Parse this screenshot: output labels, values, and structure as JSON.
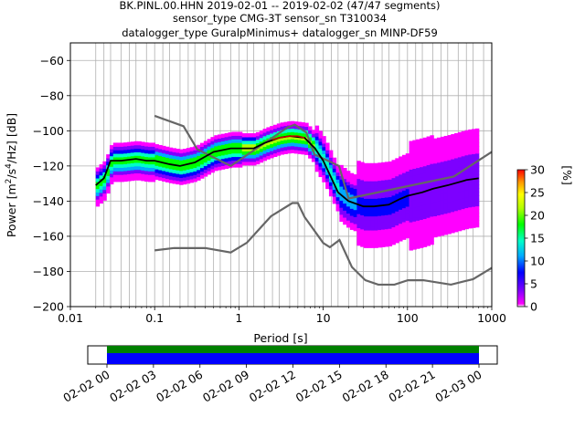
{
  "chart_data": {
    "type": "heatmap",
    "title_lines": [
      "BK.PINL.00.HHN   2019-02-01 -- 2019-02-02  (47/47 segments)",
      "sensor_type CMG-3T sensor_sn T310034",
      "datalogger_type GuralpMinimus+ datalogger_sn MINP-DF59"
    ],
    "xlabel": "Period [s]",
    "ylabel_parts": [
      "Power [m",
      "2",
      "/s",
      "4",
      "/Hz] [dB]"
    ],
    "x_scale": "log",
    "xlim": [
      0.01,
      1000
    ],
    "ylim": [
      -200,
      -50
    ],
    "x_ticks": [
      {
        "value": 0.01,
        "label": "0.01"
      },
      {
        "value": 0.1,
        "label": "0.1"
      },
      {
        "value": 1,
        "label": "1"
      },
      {
        "value": 10,
        "label": "10"
      },
      {
        "value": 100,
        "label": "100"
      },
      {
        "value": 1000,
        "label": "1000"
      }
    ],
    "y_ticks": [
      {
        "value": -60,
        "label": "−60"
      },
      {
        "value": -80,
        "label": "−80"
      },
      {
        "value": -100,
        "label": "−100"
      },
      {
        "value": -120,
        "label": "−120"
      },
      {
        "value": -140,
        "label": "−140"
      },
      {
        "value": -160,
        "label": "−160"
      },
      {
        "value": -180,
        "label": "−180"
      },
      {
        "value": -200,
        "label": "−200"
      }
    ],
    "period_gridlines": [
      0.02,
      0.025,
      0.03,
      0.04,
      0.05,
      0.06,
      0.08,
      0.1,
      0.125,
      0.15,
      0.2,
      0.25,
      0.3,
      0.4,
      0.5,
      0.6,
      0.8,
      1,
      1.25,
      1.5,
      2,
      2.5,
      3,
      4,
      5,
      6,
      8,
      10,
      12.5,
      15,
      20,
      25,
      30,
      40,
      50,
      60,
      80,
      100,
      125,
      150,
      200,
      250,
      300,
      400,
      500,
      600,
      800
    ],
    "grid": true,
    "nlnm": {
      "name": "NLNM",
      "color": "#666666",
      "x": [
        0.1,
        0.17,
        0.4,
        0.8,
        1.24,
        2.4,
        4.3,
        5.0,
        6.0,
        10.0,
        12.0,
        15.6,
        21.9,
        31.6,
        45.0,
        70.0,
        101.0,
        154.0,
        328.0,
        600.0,
        1000.0
      ],
      "y": [
        -168,
        -166.7,
        -166.7,
        -169.2,
        -163.7,
        -148.6,
        -141.1,
        -141.1,
        -149.0,
        -163.8,
        -166.2,
        -162.1,
        -177.5,
        -185.0,
        -187.5,
        -187.5,
        -185.0,
        -185.0,
        -187.5,
        -184.4,
        -178
      ]
    },
    "nhnm": {
      "name": "NHNM",
      "color": "#666666",
      "x": [
        0.1,
        0.22,
        0.32,
        0.8,
        3.8,
        4.6,
        6.3,
        7.9,
        15.4,
        20.0,
        354.8,
        1000.0
      ],
      "y": [
        -91.5,
        -97.4,
        -110.5,
        -120.0,
        -98.0,
        -96.5,
        -101.0,
        -113.5,
        -120.0,
        -138.5,
        -126.0,
        -112.0
      ]
    },
    "mean": {
      "name": "mean",
      "color": "#000000",
      "x": [
        0.02,
        0.025,
        0.03,
        0.04,
        0.06,
        0.08,
        0.1,
        0.15,
        0.2,
        0.3,
        0.5,
        0.8,
        1.0,
        1.5,
        2.0,
        3.0,
        4.0,
        6.0,
        8.0,
        10.0,
        15.0,
        20.0,
        30.0,
        40.0,
        60.0,
        80.0,
        100.0,
        150.0,
        200.0,
        300.0,
        500.0,
        700.0
      ],
      "y": [
        -131,
        -127,
        -117,
        -117,
        -116,
        -117,
        -117,
        -119,
        -120,
        -118,
        -112,
        -110,
        -110,
        -110,
        -107,
        -104,
        -103,
        -104,
        -110,
        -117,
        -135,
        -140,
        -143,
        -143,
        -142,
        -139,
        -137,
        -135,
        -133,
        -131,
        -128,
        -127
      ]
    },
    "mode": {
      "name": "mode",
      "color": "#cc0000",
      "x": [
        2.5,
        3.0,
        4.0,
        5.0,
        6.0
      ],
      "y": [
        -105,
        -104,
        -103,
        -103,
        -104
      ]
    },
    "colorbar": {
      "label": "[%]",
      "min": 0,
      "max": 30,
      "ticks": [
        "0",
        "5",
        "10",
        "15",
        "20",
        "25",
        "30"
      ],
      "colormap": "pqlx"
    },
    "timeline": {
      "labels": [
        "02-02 00",
        "02-02 03",
        "02-02 06",
        "02-02 09",
        "02-02 12",
        "02-02 15",
        "02-02 18",
        "02-02 21",
        "02-03 00"
      ],
      "coverage_color": "#0000ff",
      "quality_color": "#008000"
    }
  }
}
